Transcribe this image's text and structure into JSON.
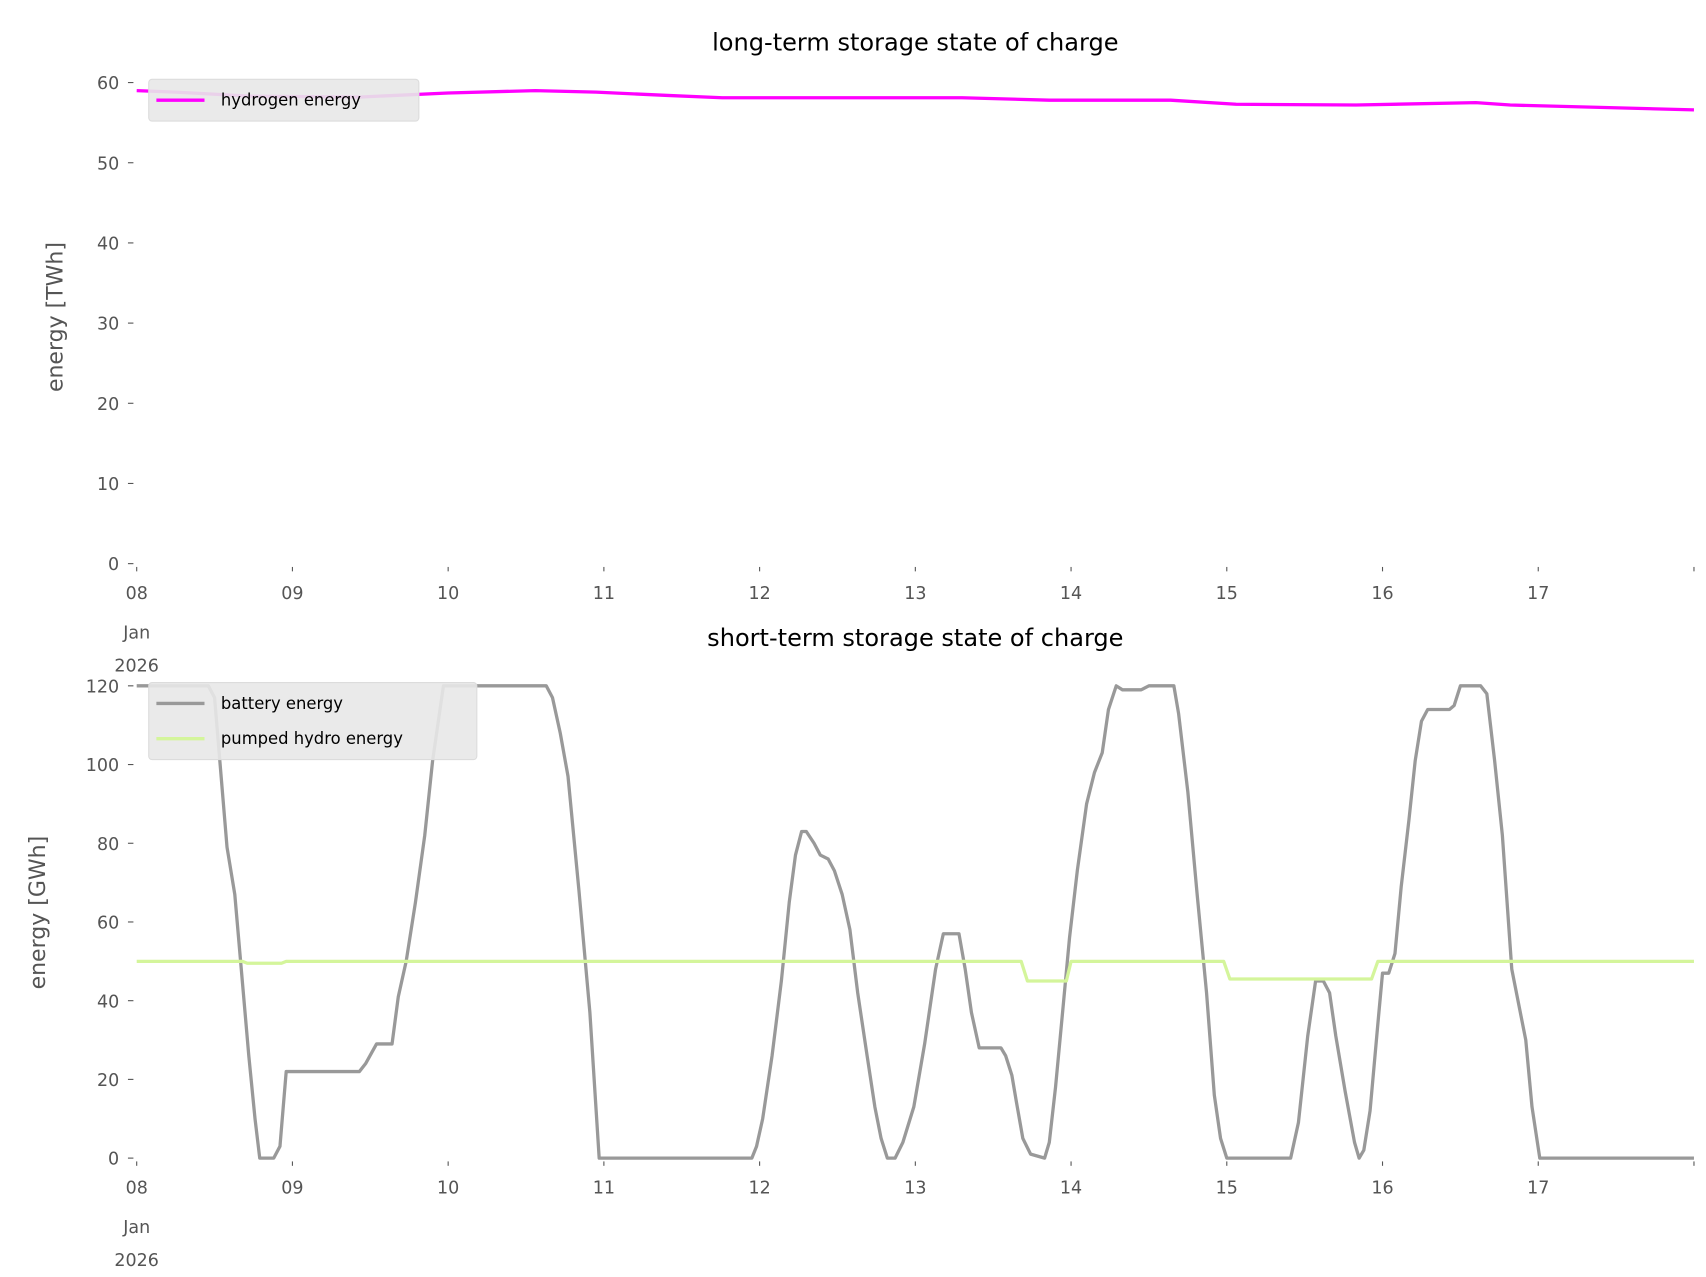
{
  "chart_data": [
    {
      "type": "line",
      "title": "long-term storage state of charge",
      "xlabel": "",
      "ylabel": "energy [TWh]",
      "x_unit": "days since 08 Jan 2026",
      "xlim": [
        0,
        10
      ],
      "ylim": [
        0,
        60
      ],
      "yticks": [
        "0",
        "10",
        "20",
        "30",
        "40",
        "50",
        "60"
      ],
      "xticks": [
        {
          "value": 0,
          "label": "08",
          "sub": "Jan",
          "sub2": "2026"
        },
        {
          "value": 1,
          "label": "09"
        },
        {
          "value": 2,
          "label": "10"
        },
        {
          "value": 3,
          "label": "11"
        },
        {
          "value": 4,
          "label": "12"
        },
        {
          "value": 5,
          "label": "13"
        },
        {
          "value": 6,
          "label": "14"
        },
        {
          "value": 7,
          "label": "15"
        },
        {
          "value": 8,
          "label": "16"
        },
        {
          "value": 9,
          "label": "17"
        },
        {
          "value": 10,
          "label": ""
        }
      ],
      "grid": false,
      "legend_position": "top-left",
      "series": [
        {
          "name": "hydrogen energy",
          "color": "#ff00ff",
          "x": [
            0,
            0.25,
            0.74,
            1.44,
            2.0,
            2.56,
            2.95,
            3.41,
            3.76,
            5.3,
            5.86,
            6.64,
            7.06,
            7.83,
            8.6,
            8.82,
            10
          ],
          "y": [
            59.0,
            58.8,
            58.3,
            58.2,
            58.7,
            59.0,
            58.8,
            58.4,
            58.1,
            58.1,
            57.8,
            57.8,
            57.3,
            57.2,
            57.5,
            57.2,
            56.6
          ]
        }
      ]
    },
    {
      "type": "line",
      "title": "short-term storage state of charge",
      "xlabel": "",
      "ylabel": "energy [GWh]",
      "x_unit": "days since 08 Jan 2026",
      "xlim": [
        0,
        10
      ],
      "ylim": [
        0,
        120
      ],
      "yticks": [
        "0",
        "20",
        "40",
        "60",
        "80",
        "100",
        "120"
      ],
      "xticks": [
        {
          "value": 0,
          "label": "08",
          "sub": "Jan",
          "sub2": "2026"
        },
        {
          "value": 1,
          "label": "09"
        },
        {
          "value": 2,
          "label": "10"
        },
        {
          "value": 3,
          "label": "11"
        },
        {
          "value": 4,
          "label": "12"
        },
        {
          "value": 5,
          "label": "13"
        },
        {
          "value": 6,
          "label": "14"
        },
        {
          "value": 7,
          "label": "15"
        },
        {
          "value": 8,
          "label": "16"
        },
        {
          "value": 9,
          "label": "17"
        },
        {
          "value": 10,
          "label": ""
        }
      ],
      "grid": false,
      "legend_position": "top-left",
      "series": [
        {
          "name": "battery energy",
          "color": "#999999",
          "x": [
            0,
            0.46,
            0.5,
            0.58,
            0.63,
            0.72,
            0.76,
            0.79,
            0.88,
            0.92,
            0.96,
            1.43,
            1.47,
            1.54,
            1.64,
            1.68,
            1.73,
            1.79,
            1.85,
            1.9,
            1.97,
            2.63,
            2.67,
            2.72,
            2.77,
            2.84,
            2.91,
            2.97,
            3.95,
            3.98,
            4.02,
            4.08,
            4.14,
            4.19,
            4.23,
            4.27,
            4.3,
            4.35,
            4.39,
            4.44,
            4.48,
            4.53,
            4.58,
            4.63,
            4.69,
            4.74,
            4.78,
            4.82,
            4.87,
            4.92,
            4.99,
            5.06,
            5.13,
            5.18,
            5.28,
            5.32,
            5.36,
            5.41,
            5.55,
            5.58,
            5.62,
            5.65,
            5.69,
            5.74,
            5.83,
            5.86,
            5.9,
            5.95,
            5.99,
            6.04,
            6.1,
            6.15,
            6.2,
            6.24,
            6.29,
            6.33,
            6.45,
            6.5,
            6.66,
            6.69,
            6.75,
            6.81,
            6.87,
            6.92,
            6.96,
            7.0,
            7.41,
            7.46,
            7.52,
            7.57,
            7.62,
            7.66,
            7.7,
            7.76,
            7.82,
            7.85,
            7.88,
            7.92,
            7.97,
            8.0,
            8.04,
            8.08,
            8.12,
            8.17,
            8.21,
            8.25,
            8.29,
            8.43,
            8.46,
            8.5,
            8.63,
            8.67,
            8.72,
            8.77,
            8.83,
            8.92,
            8.96,
            9.01,
            10
          ],
          "y": [
            120,
            120,
            117,
            79,
            67,
            26,
            10,
            0,
            0,
            3,
            22,
            22,
            24,
            29,
            29,
            41,
            50,
            65,
            82,
            101,
            120,
            120,
            117,
            108,
            97,
            68,
            37,
            0,
            0,
            3,
            10,
            26,
            45,
            65,
            77,
            83,
            83,
            80,
            77,
            76,
            73,
            67,
            58,
            42,
            26,
            13,
            5,
            0,
            0,
            4,
            13,
            29,
            48,
            57,
            57,
            48,
            37,
            28,
            28,
            26,
            21,
            14,
            5,
            1,
            0,
            4,
            18,
            39,
            56,
            73,
            90,
            98,
            103,
            114,
            120,
            119,
            119,
            120,
            120,
            113,
            93,
            67,
            42,
            16,
            5,
            0,
            0,
            9,
            31,
            45,
            45,
            42,
            31,
            17,
            4,
            0,
            2,
            12,
            34,
            47,
            47,
            52,
            69,
            86,
            101,
            111,
            114,
            114,
            115,
            120,
            120,
            118,
            101,
            82,
            48,
            30,
            13,
            0,
            0
          ]
        },
        {
          "name": "pumped hydro energy",
          "color": "#d4f59b",
          "x": [
            0,
            0.68,
            0.71,
            0.93,
            0.96,
            5.68,
            5.72,
            5.97,
            6.0,
            6.98,
            7.02,
            7.93,
            7.97,
            10
          ],
          "y": [
            50,
            50,
            49.5,
            49.5,
            50,
            50,
            45,
            45,
            50,
            50,
            45.5,
            45.5,
            50,
            50
          ]
        }
      ]
    }
  ]
}
